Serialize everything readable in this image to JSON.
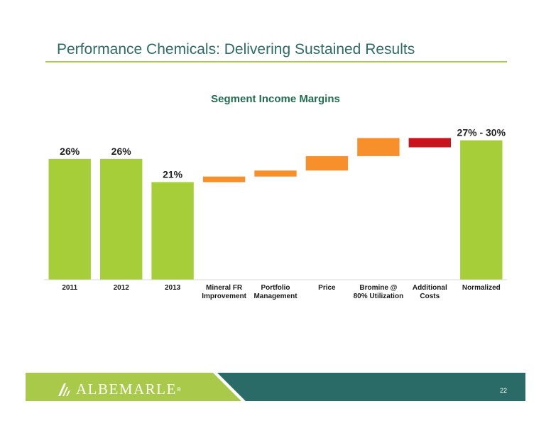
{
  "slide": {
    "title": "Performance Chemicals: Delivering Sustained Results",
    "page_number": "22"
  },
  "brand": {
    "logo_text": "ALBEMARLE",
    "registered_mark": "®",
    "colors": {
      "title": "#2e6b68",
      "rule": "#a9c94a",
      "footer_green": "#a8c94a",
      "footer_teal": "#2a6b68"
    }
  },
  "chart_data": {
    "type": "bar",
    "subtype": "waterfall",
    "title": "Segment Income Margins",
    "categories": [
      "2011",
      "2012",
      "2013",
      "Mineral FR Improvement",
      "Portfolio Management",
      "Price",
      "Bromine @ 80% Utilization",
      "Additional Costs",
      "Normalized"
    ],
    "category_lines": [
      [
        "2011"
      ],
      [
        "2012"
      ],
      [
        "2013"
      ],
      [
        "Mineral FR",
        "Improvement"
      ],
      [
        "Portfolio",
        "Management"
      ],
      [
        "Price"
      ],
      [
        "Bromine @",
        "80% Utilization"
      ],
      [
        "Additional",
        "Costs"
      ],
      [
        "Normalized"
      ]
    ],
    "bars": [
      {
        "kind": "total",
        "start": 0,
        "end": 26,
        "label": "26%",
        "color": "#a6ce39"
      },
      {
        "kind": "total",
        "start": 0,
        "end": 26,
        "label": "26%",
        "color": "#a6ce39"
      },
      {
        "kind": "total",
        "start": 0,
        "end": 21,
        "label": "21%",
        "color": "#a6ce39"
      },
      {
        "kind": "increase",
        "start": 21,
        "end": 22.2,
        "label": "",
        "color": "#f7902b"
      },
      {
        "kind": "increase",
        "start": 22.2,
        "end": 23.5,
        "label": "",
        "color": "#f7902b"
      },
      {
        "kind": "increase",
        "start": 23.5,
        "end": 26.6,
        "label": "",
        "color": "#f7902b"
      },
      {
        "kind": "increase",
        "start": 26.6,
        "end": 30.5,
        "label": "",
        "color": "#f7902b"
      },
      {
        "kind": "decrease",
        "start": 30.5,
        "end": 28.5,
        "label": "",
        "color": "#c8141c"
      },
      {
        "kind": "total",
        "start": 0,
        "end": 30,
        "label": "27% - 30%",
        "color": "#a6ce39"
      }
    ],
    "ylim": [
      0,
      33
    ],
    "grid": false,
    "legend": "none"
  }
}
